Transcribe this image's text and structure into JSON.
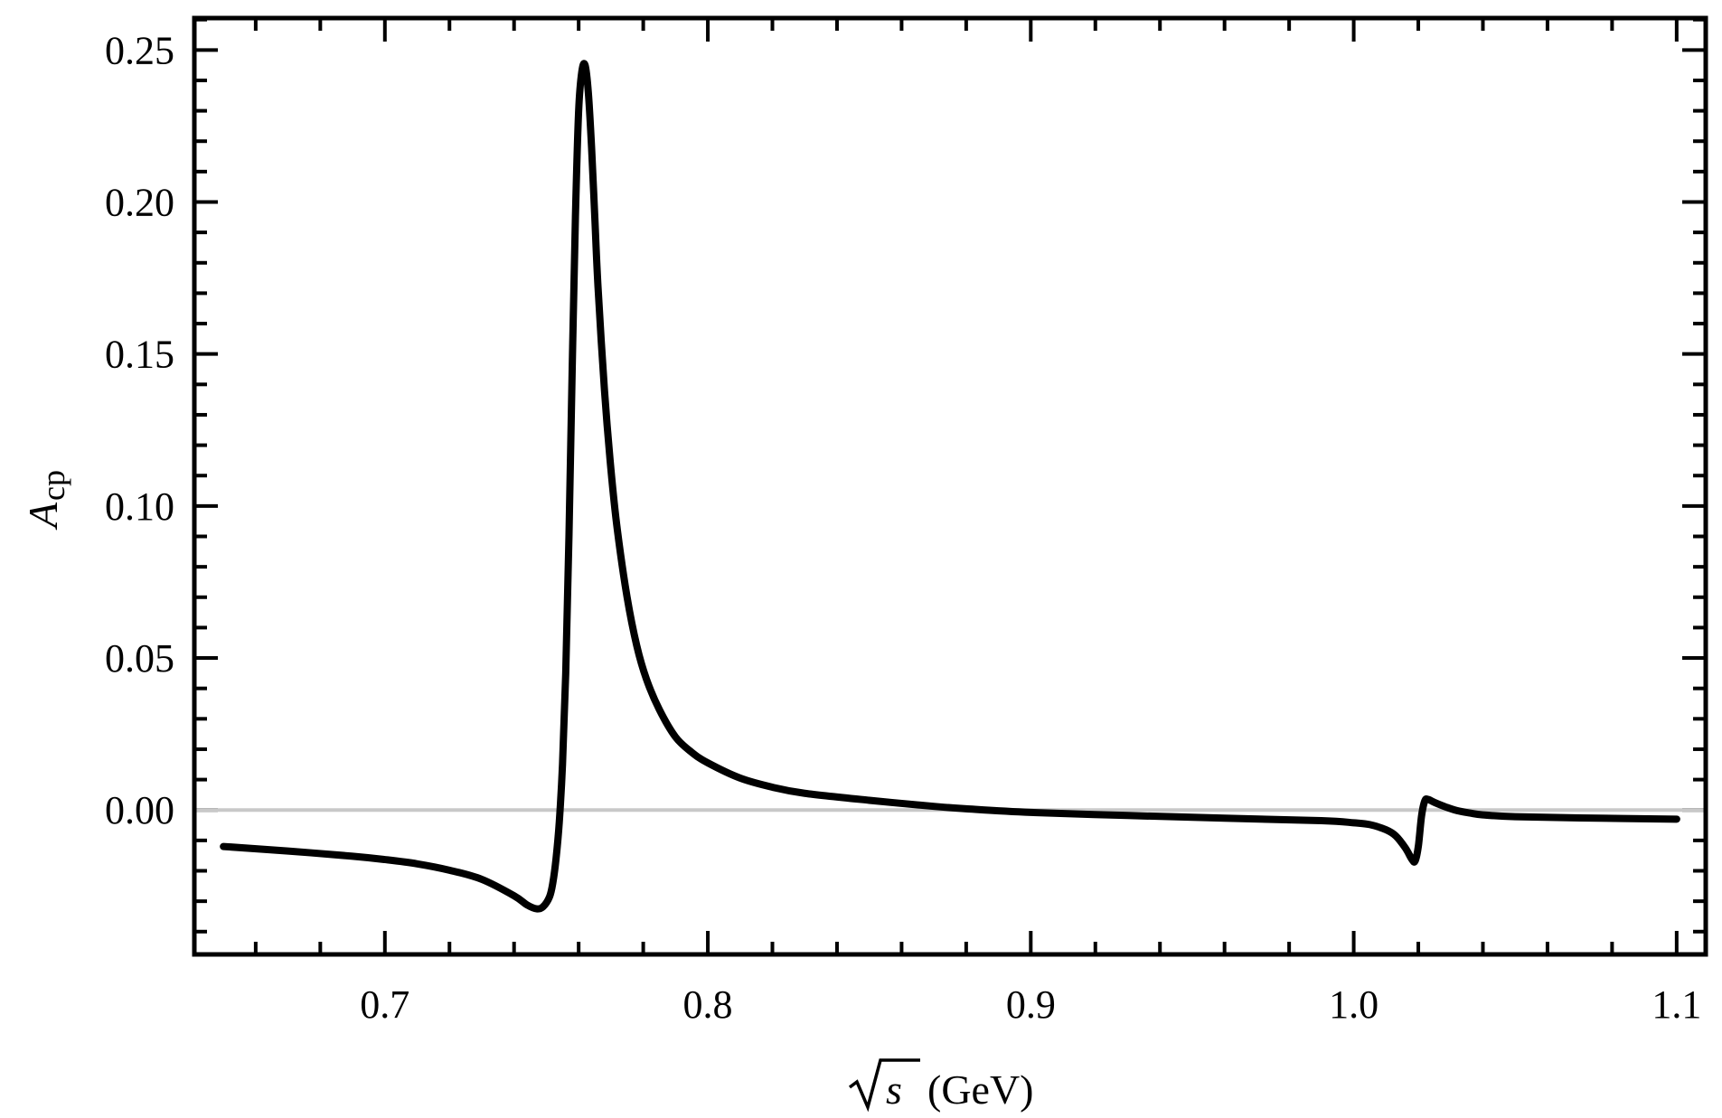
{
  "chart_data": {
    "type": "line",
    "title": "",
    "xlabel": "(GeV)",
    "xlabel_symbol": "s",
    "ylabel": "A",
    "ylabel_subscript": "cp",
    "xlim": [
      0.641,
      1.109
    ],
    "ylim": [
      -0.0475,
      0.2605
    ],
    "grid": false,
    "x_ticks": [
      "0.7",
      "0.8",
      "0.9",
      "1.0",
      "1.1"
    ],
    "y_ticks": [
      "0.00",
      "0.05",
      "0.10",
      "0.15",
      "0.20",
      "0.25"
    ],
    "reference_line": {
      "y": 0,
      "color": "#c8c8c8"
    },
    "series": [
      {
        "color": "#000000",
        "x": [
          0.65,
          0.67,
          0.69,
          0.7,
          0.71,
          0.72,
          0.73,
          0.74,
          0.744,
          0.747,
          0.749,
          0.751,
          0.752,
          0.753,
          0.754,
          0.755,
          0.756,
          0.757,
          0.758,
          0.759,
          0.76,
          0.761,
          0.762,
          0.763,
          0.764,
          0.765,
          0.766,
          0.768,
          0.77,
          0.772,
          0.775,
          0.778,
          0.781,
          0.785,
          0.79,
          0.795,
          0.8,
          0.81,
          0.82,
          0.83,
          0.85,
          0.87,
          0.88,
          0.9,
          0.93,
          0.96,
          0.99,
          1.0,
          1.005,
          1.01,
          1.013,
          1.016,
          1.018,
          1.019,
          1.02,
          1.021,
          1.022,
          1.023,
          1.025,
          1.028,
          1.032,
          1.036,
          1.04,
          1.05,
          1.07,
          1.1
        ],
        "y": [
          -0.012,
          -0.0135,
          -0.0152,
          -0.0163,
          -0.0177,
          -0.0198,
          -0.0228,
          -0.0282,
          -0.0312,
          -0.0325,
          -0.0318,
          -0.0285,
          -0.024,
          -0.016,
          -0.004,
          0.015,
          0.045,
          0.09,
          0.145,
          0.195,
          0.23,
          0.243,
          0.245,
          0.236,
          0.218,
          0.195,
          0.172,
          0.138,
          0.112,
          0.092,
          0.07,
          0.054,
          0.043,
          0.033,
          0.024,
          0.019,
          0.0155,
          0.0105,
          0.0075,
          0.0055,
          0.0032,
          0.0012,
          0.0004,
          -0.0008,
          -0.0018,
          -0.0027,
          -0.0035,
          -0.0042,
          -0.0048,
          -0.0065,
          -0.0085,
          -0.0125,
          -0.0162,
          -0.0168,
          -0.012,
          -0.002,
          0.003,
          0.0035,
          0.0025,
          0.0012,
          -0.0002,
          -0.001,
          -0.0016,
          -0.0022,
          -0.0026,
          -0.003
        ]
      }
    ]
  }
}
